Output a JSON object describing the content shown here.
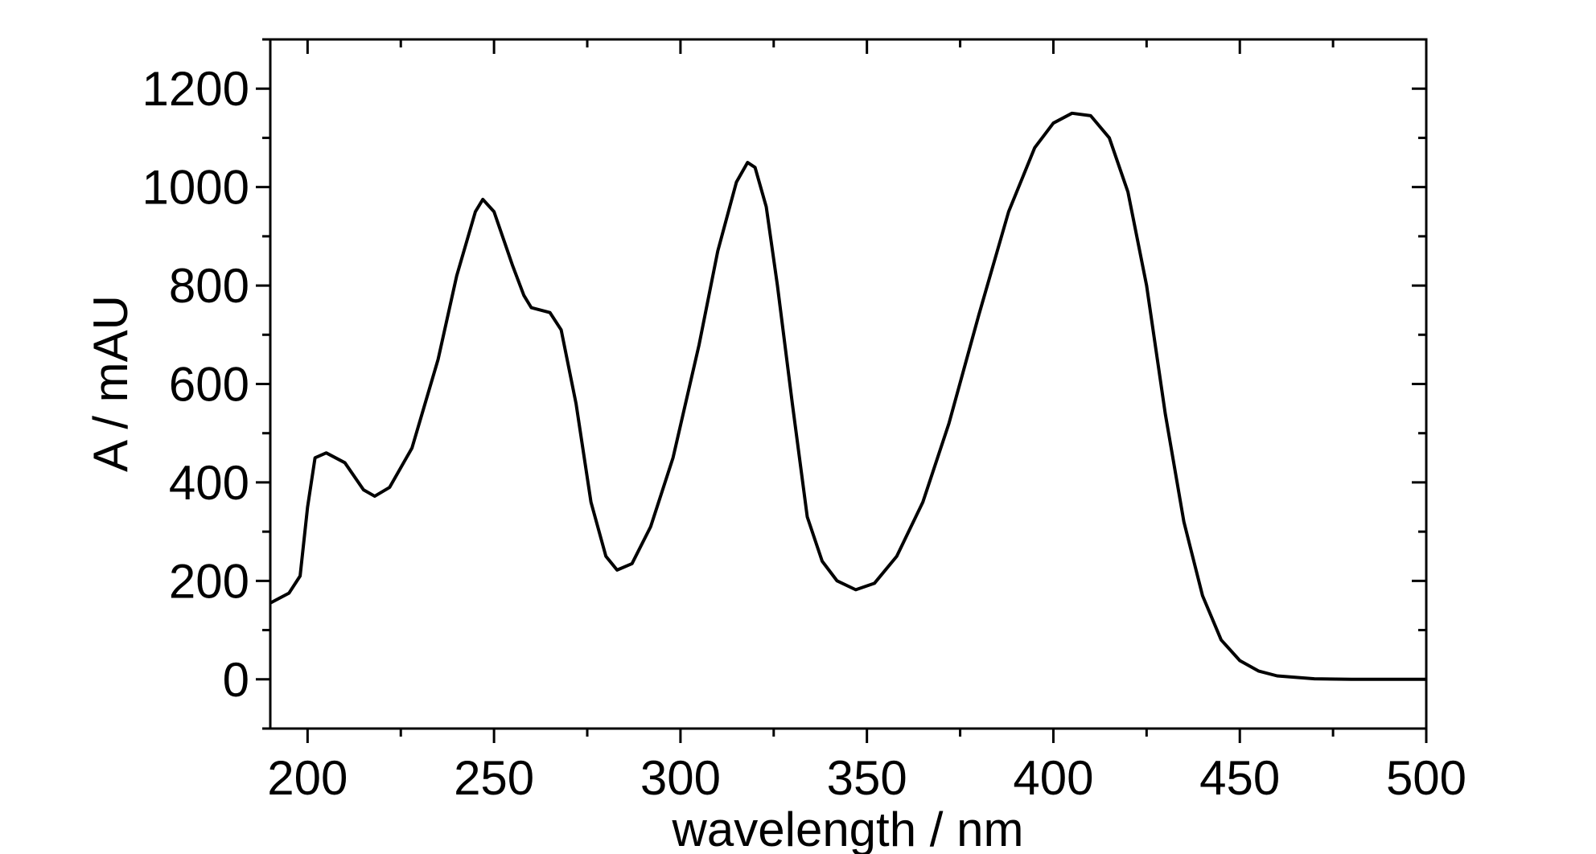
{
  "chart_data": {
    "type": "line",
    "xlabel": "wavelength / nm",
    "ylabel": "A / mAU",
    "color": "#000000",
    "x": [
      190,
      195,
      198,
      200,
      202,
      205,
      210,
      215,
      218,
      222,
      228,
      235,
      240,
      245,
      247,
      250,
      255,
      258,
      260,
      265,
      268,
      272,
      276,
      280,
      283,
      287,
      292,
      298,
      305,
      310,
      315,
      318,
      320,
      323,
      326,
      330,
      334,
      338,
      342,
      347,
      352,
      358,
      365,
      372,
      380,
      388,
      395,
      400,
      405,
      410,
      415,
      420,
      425,
      430,
      435,
      440,
      445,
      450,
      455,
      460,
      470,
      480,
      500
    ],
    "values": [
      155,
      175,
      210,
      350,
      450,
      460,
      440,
      385,
      372,
      390,
      470,
      650,
      820,
      950,
      975,
      950,
      840,
      780,
      755,
      745,
      710,
      560,
      360,
      250,
      222,
      235,
      310,
      450,
      680,
      870,
      1010,
      1050,
      1040,
      960,
      800,
      560,
      330,
      240,
      200,
      182,
      195,
      250,
      360,
      520,
      740,
      950,
      1080,
      1130,
      1150,
      1145,
      1100,
      990,
      800,
      540,
      320,
      170,
      80,
      38,
      17,
      7,
      1,
      0,
      0
    ],
    "xlim": [
      190,
      500
    ],
    "ylim": [
      -100,
      1300
    ],
    "xticks": [
      200,
      250,
      300,
      350,
      400,
      450,
      500
    ],
    "yticks": [
      0,
      200,
      400,
      600,
      800,
      1000,
      1200
    ],
    "x_minor_ticks": [
      225,
      275,
      325,
      375,
      425,
      475
    ],
    "y_minor_ticks": [
      -100,
      100,
      300,
      500,
      700,
      900,
      1100,
      1300
    ],
    "grid": false
  }
}
